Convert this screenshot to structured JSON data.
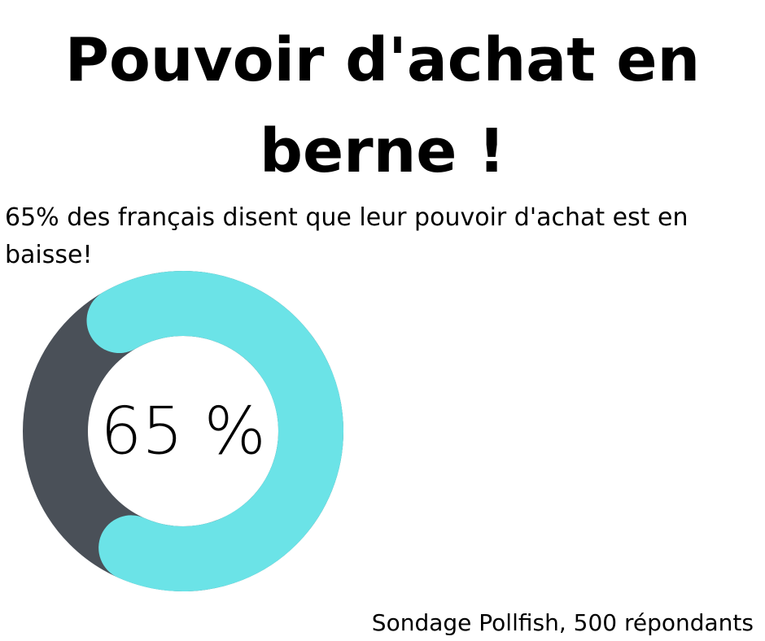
{
  "title": "Pouvoir d'achat en berne !",
  "subtitle": "65% des français disent que leur pouvoir d'achat est en baisse!",
  "source": "Sondage Pollfish, 500 répondants",
  "chart_data": {
    "type": "pie",
    "style": "donut",
    "value": 65,
    "unit": "%",
    "center_label": "65 %",
    "slices": [
      {
        "value": 65,
        "color": "#6be3e7"
      },
      {
        "value": 35,
        "color": "#4a5058"
      }
    ]
  }
}
